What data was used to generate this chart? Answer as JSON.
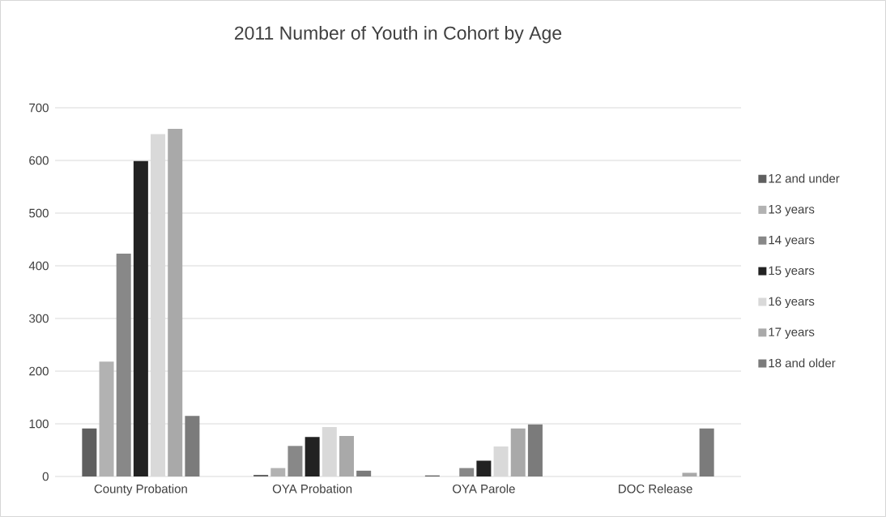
{
  "chart_data": {
    "type": "bar",
    "title": "2011 Number of Youth in Cohort by Age",
    "categories": [
      "County Probation",
      "OYA Probation",
      "OYA Parole",
      "DOC Release"
    ],
    "series": [
      {
        "name": "12 and under",
        "color": "#5f5f5f",
        "values": [
          91,
          3,
          2,
          0
        ]
      },
      {
        "name": "13 years",
        "color": "#b2b2b2",
        "values": [
          218,
          16,
          0,
          0
        ]
      },
      {
        "name": "14 years",
        "color": "#888888",
        "values": [
          423,
          58,
          16,
          0
        ]
      },
      {
        "name": "15 years",
        "color": "#222222",
        "values": [
          599,
          75,
          30,
          0
        ]
      },
      {
        "name": "16 years",
        "color": "#d9d9d9",
        "values": [
          650,
          94,
          57,
          0
        ]
      },
      {
        "name": "17 years",
        "color": "#a9a9a9",
        "values": [
          660,
          77,
          91,
          7
        ]
      },
      {
        "name": "18 and older",
        "color": "#7b7b7b",
        "values": [
          115,
          11,
          99,
          91
        ]
      }
    ],
    "ylim": [
      0,
      700
    ],
    "yticks": [
      0,
      100,
      200,
      300,
      400,
      500,
      600,
      700
    ],
    "grid": "y",
    "legend": "right"
  }
}
